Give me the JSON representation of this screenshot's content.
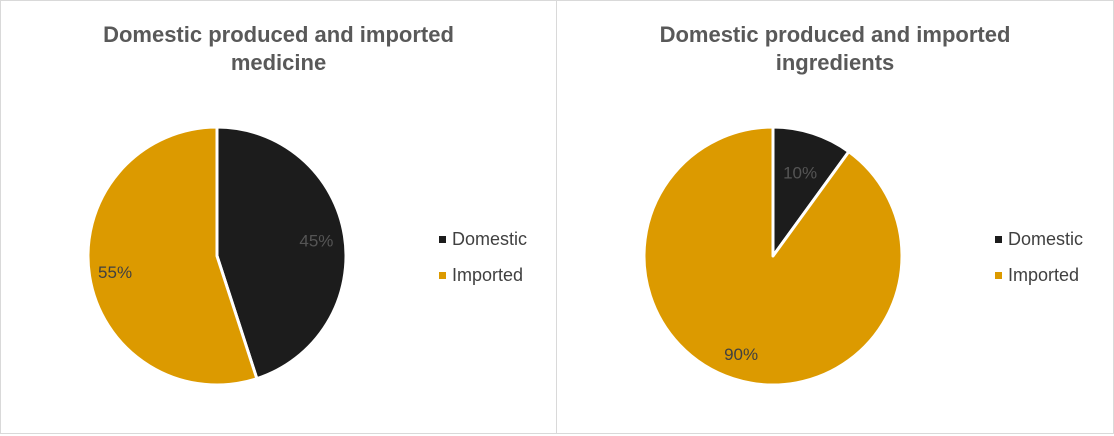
{
  "colors": {
    "domestic": "#1c1c1c",
    "imported": "#dc9a00",
    "label_dark": "#404040",
    "label_on_dark": "#555555"
  },
  "chart_data": [
    {
      "type": "pie",
      "title_lines": [
        "Domestic produced and imported",
        "medicine"
      ],
      "categories": [
        "Domestic",
        "Imported"
      ],
      "values": [
        45,
        55
      ],
      "data_labels": [
        "45%",
        "55%"
      ],
      "legend": "right"
    },
    {
      "type": "pie",
      "title_lines": [
        "Domestic produced and imported",
        "ingredients"
      ],
      "categories": [
        "Domestic",
        "Imported"
      ],
      "values": [
        10,
        90
      ],
      "data_labels": [
        "10%",
        "90%"
      ],
      "legend": "right"
    }
  ]
}
